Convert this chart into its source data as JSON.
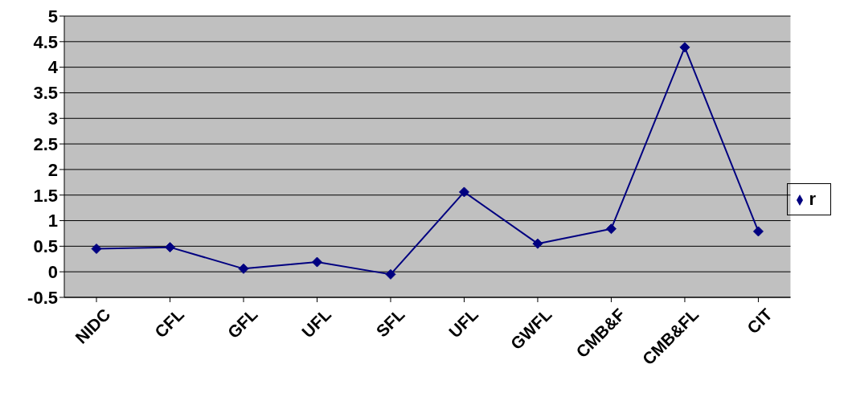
{
  "chart_data": {
    "type": "line",
    "categories": [
      "NIDC",
      "CFL",
      "GFL",
      "UFL",
      "SFL",
      "UFL",
      "GWFL",
      "CMB&F",
      "CMB&FL",
      "CIT"
    ],
    "series": [
      {
        "name": "r",
        "color": "#000080",
        "values": [
          0.45,
          0.48,
          0.06,
          0.19,
          -0.05,
          1.56,
          0.55,
          0.84,
          4.39,
          0.79
        ]
      }
    ],
    "ylim": [
      -0.5,
      5
    ],
    "yticks": [
      -0.5,
      0,
      0.5,
      1,
      1.5,
      2,
      2.5,
      3,
      3.5,
      4,
      4.5,
      5
    ],
    "grid": "y",
    "legend": "right",
    "marker": "diamond",
    "line_style": "solid"
  }
}
